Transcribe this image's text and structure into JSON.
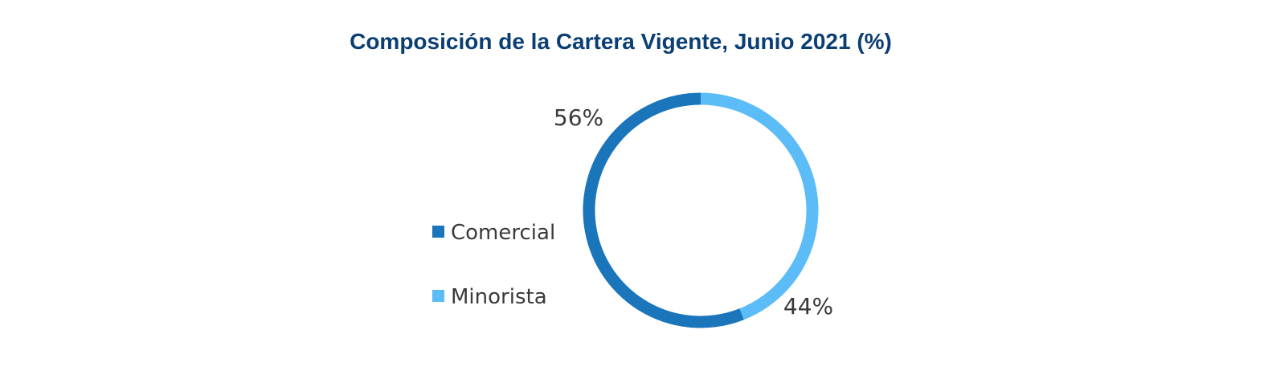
{
  "chart_data": {
    "type": "pie",
    "variant": "donut",
    "title": "Composición de la Cartera Vigente, Junio 2021 (%)",
    "legend_position": "left",
    "series": [
      {
        "name": "Comercial",
        "value": 56,
        "label": "56%",
        "color": "#1b75bb"
      },
      {
        "name": "Minorista",
        "value": 44,
        "label": "44%",
        "color": "#5bbcf7"
      }
    ]
  }
}
